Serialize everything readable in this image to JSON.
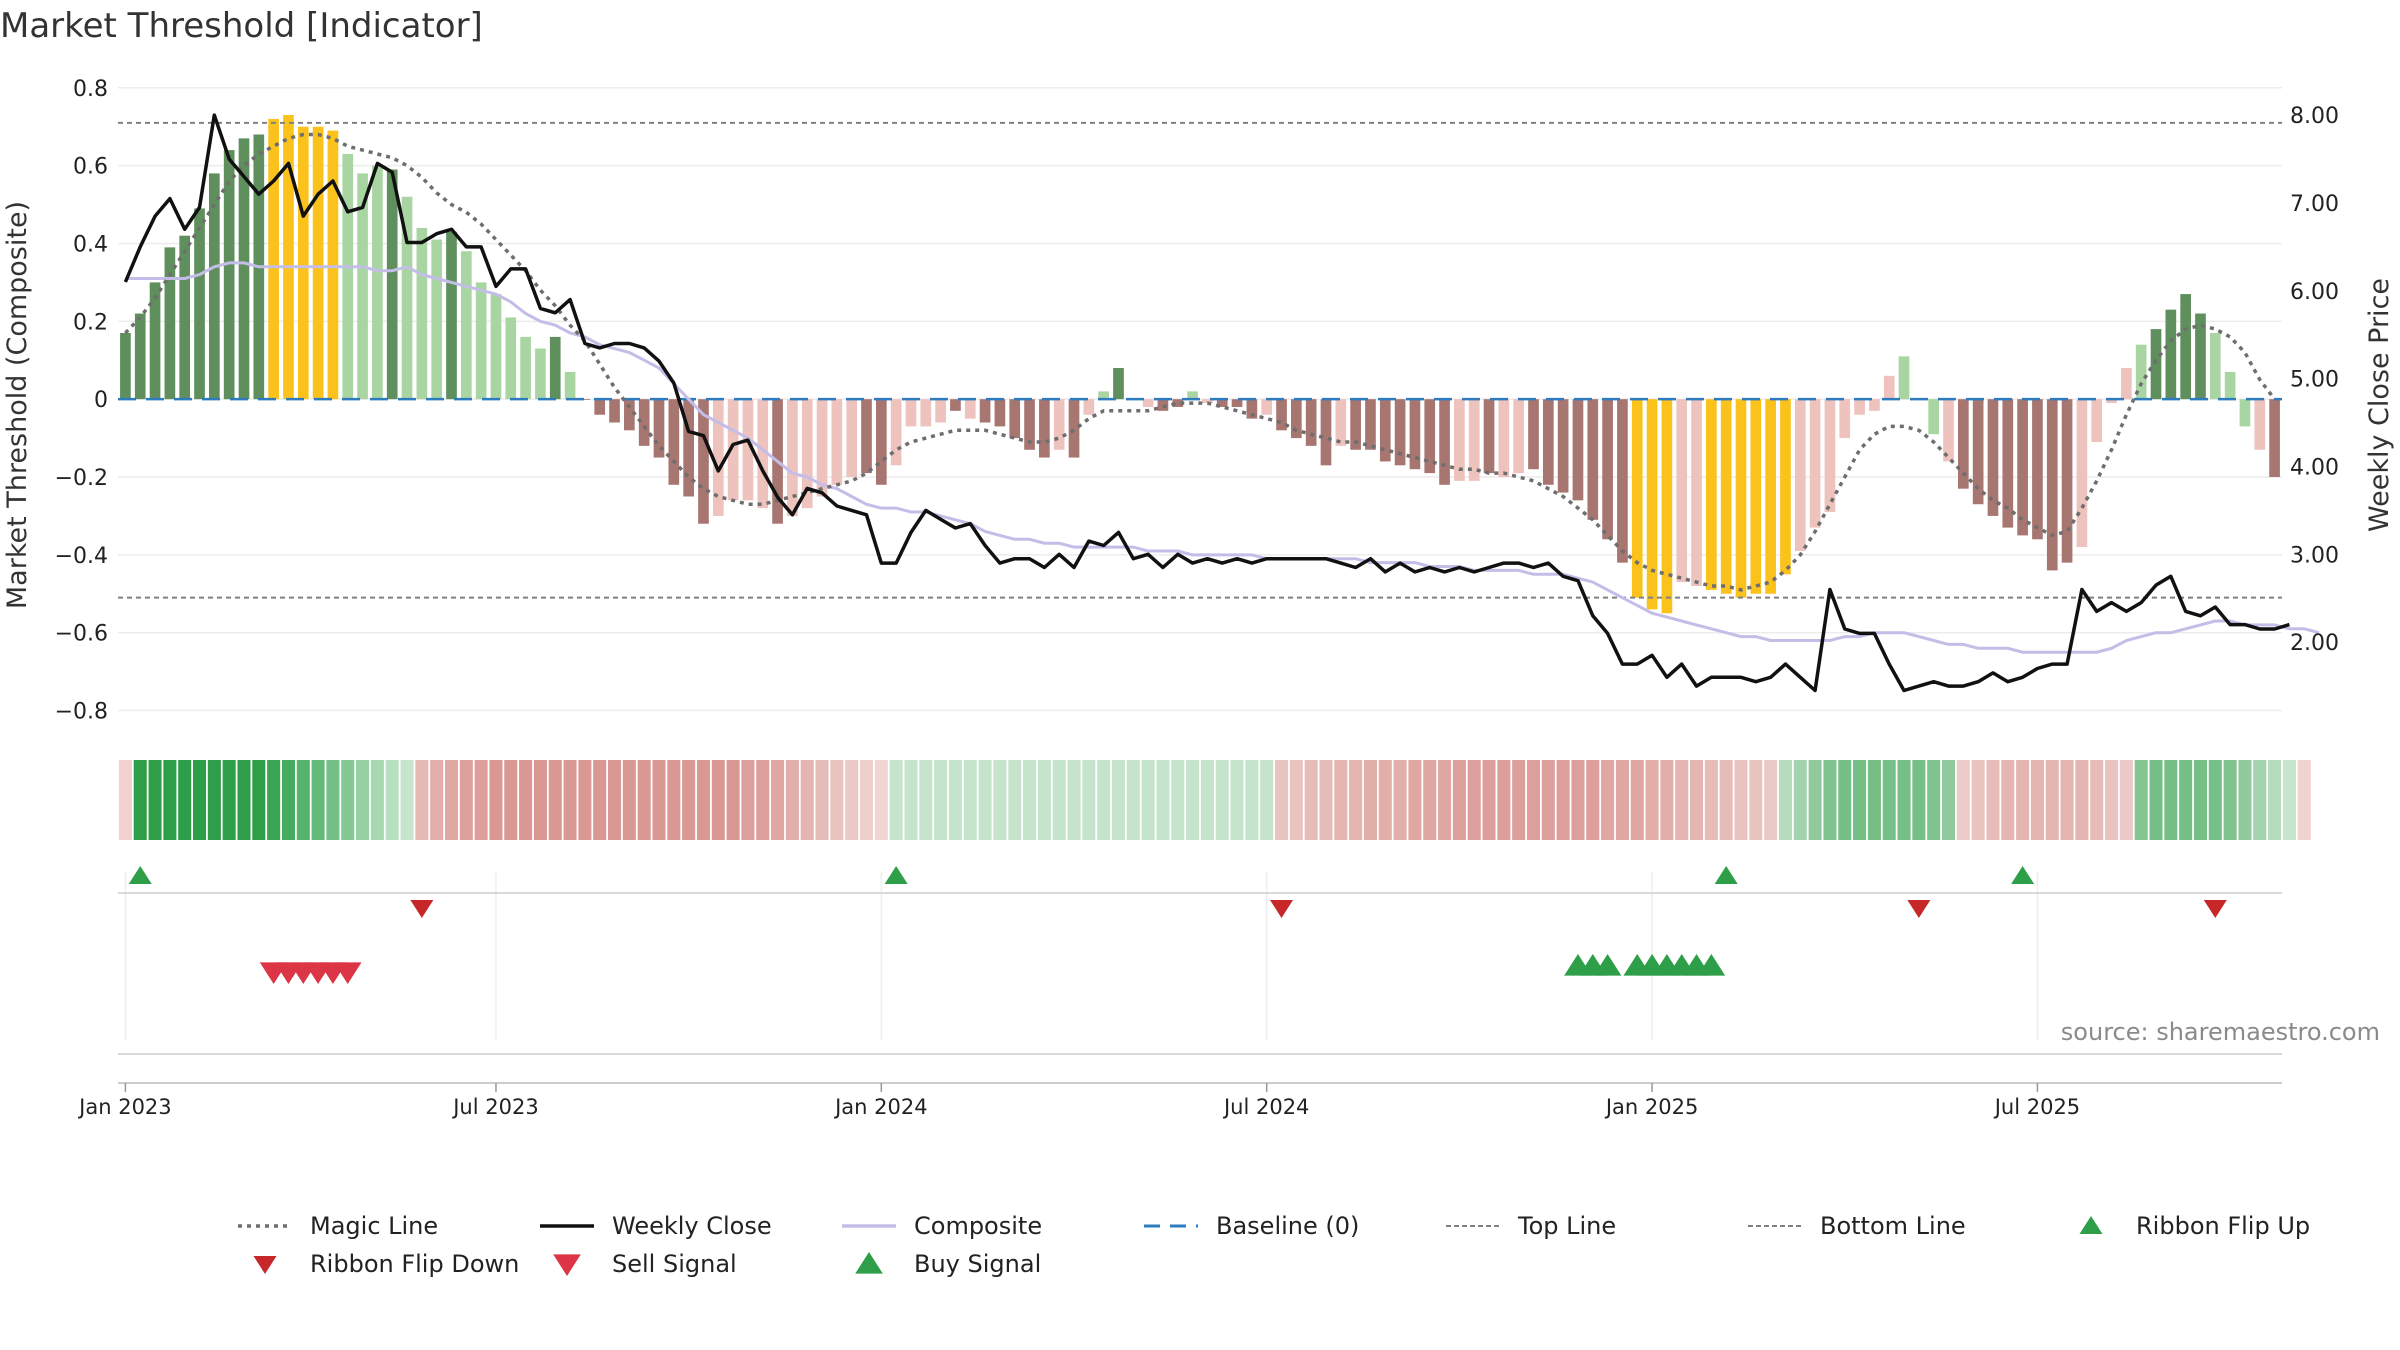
{
  "chart_data": {
    "type": "bar",
    "title": "Market Threshold [Indicator]",
    "ylabel": "Market Threshold (Composite)",
    "ylabel_right": "Weekly Close Price",
    "source": "source: sharemaestro.com",
    "ylim": [
      -0.85,
      0.82
    ],
    "ylim_right": [
      1.0,
      8.4
    ],
    "y_ticks": [
      {
        "v": 0.8,
        "label": "0.8"
      },
      {
        "v": 0.6,
        "label": "0.6"
      },
      {
        "v": 0.4,
        "label": "0.4"
      },
      {
        "v": 0.2,
        "label": "0.2"
      },
      {
        "v": 0,
        "label": "0"
      },
      {
        "v": -0.2,
        "label": "−0.2"
      },
      {
        "v": -0.4,
        "label": "−0.4"
      },
      {
        "v": -0.6,
        "label": "−0.6"
      },
      {
        "v": -0.8,
        "label": "−0.8"
      }
    ],
    "y_ticks_right": [
      {
        "v": 8,
        "label": "8.00"
      },
      {
        "v": 7,
        "label": "7.00"
      },
      {
        "v": 6,
        "label": "6.00"
      },
      {
        "v": 5,
        "label": "5.00"
      },
      {
        "v": 4,
        "label": "4.00"
      },
      {
        "v": 3,
        "label": "3.00"
      },
      {
        "v": 2,
        "label": "2.00"
      }
    ],
    "x_ticks": [
      {
        "week": 1,
        "label": "Jan 2023"
      },
      {
        "week": 26,
        "label": "Jul 2023"
      },
      {
        "week": 52,
        "label": "Jan 2024"
      },
      {
        "week": 78,
        "label": "Jul 2024"
      },
      {
        "week": 104,
        "label": "Jan 2025"
      },
      {
        "week": 130,
        "label": "Jul 2025"
      }
    ],
    "top_line": 0.71,
    "bottom_line": -0.51,
    "baseline": 0,
    "colors": {
      "strong_up": "#5f8f5c",
      "weak_up": "#a9d5a2",
      "extreme": "#fbc21b",
      "strong_down": "#a87671",
      "weak_down": "#eec2bd",
      "magic_line": "#6e6e6e",
      "weekly_close": "#111111",
      "composite": "#c4bde8",
      "baseline": "#2f7bbf",
      "ref_line": "#808080",
      "flip_up": "#2e9e48",
      "flip_down": "#c8272a",
      "sell": "#dc3545",
      "buy": "#2e9e48"
    },
    "composite_bars": [
      0.17,
      0.22,
      0.3,
      0.39,
      0.42,
      0.49,
      0.58,
      0.64,
      0.67,
      0.68,
      0.72,
      0.73,
      0.7,
      0.7,
      0.69,
      0.63,
      0.58,
      0.6,
      0.59,
      0.52,
      0.44,
      0.41,
      0.43,
      0.38,
      0.3,
      0.27,
      0.21,
      0.16,
      0.13,
      0.16,
      0.07,
      0.0,
      -0.04,
      -0.06,
      -0.08,
      -0.12,
      -0.15,
      -0.22,
      -0.25,
      -0.32,
      -0.3,
      -0.26,
      -0.26,
      -0.28,
      -0.32,
      -0.3,
      -0.28,
      -0.25,
      -0.22,
      -0.2,
      -0.19,
      -0.22,
      -0.17,
      -0.07,
      -0.07,
      -0.06,
      -0.03,
      -0.05,
      -0.06,
      -0.07,
      -0.1,
      -0.13,
      -0.15,
      -0.13,
      -0.15,
      -0.04,
      0.02,
      0.08,
      0.0,
      -0.02,
      -0.03,
      -0.02,
      0.02,
      -0.01,
      -0.02,
      -0.02,
      -0.05,
      -0.04,
      -0.08,
      -0.1,
      -0.12,
      -0.17,
      -0.12,
      -0.13,
      -0.13,
      -0.16,
      -0.17,
      -0.18,
      -0.19,
      -0.22,
      -0.21,
      -0.21,
      -0.19,
      -0.2,
      -0.19,
      -0.18,
      -0.22,
      -0.24,
      -0.26,
      -0.31,
      -0.36,
      -0.42,
      -0.51,
      -0.54,
      -0.55,
      -0.47,
      -0.48,
      -0.49,
      -0.5,
      -0.51,
      -0.5,
      -0.5,
      -0.45,
      -0.39,
      -0.33,
      -0.29,
      -0.1,
      -0.04,
      -0.03,
      0.06,
      0.11,
      0.0,
      -0.09,
      -0.16,
      -0.23,
      -0.27,
      -0.3,
      -0.33,
      -0.35,
      -0.36,
      -0.44,
      -0.42,
      -0.38,
      -0.11,
      -0.01,
      0.08,
      0.14,
      0.18,
      0.23,
      0.27,
      0.22,
      0.17,
      0.07,
      -0.07,
      -0.13,
      -0.2
    ],
    "bar_categories": [
      "strong_up",
      "strong_up",
      "strong_up",
      "strong_up",
      "strong_up",
      "strong_up",
      "strong_up",
      "strong_up",
      "strong_up",
      "strong_up",
      "extreme",
      "extreme",
      "extreme",
      "extreme",
      "extreme",
      "weak_up",
      "weak_up",
      "weak_up",
      "strong_up",
      "weak_up",
      "weak_up",
      "weak_up",
      "strong_up",
      "weak_up",
      "weak_up",
      "weak_up",
      "weak_up",
      "weak_up",
      "weak_up",
      "strong_up",
      "weak_up",
      "strong_down",
      "strong_down",
      "strong_down",
      "strong_down",
      "strong_down",
      "strong_down",
      "strong_down",
      "strong_down",
      "strong_down",
      "weak_down",
      "weak_down",
      "weak_down",
      "weak_down",
      "strong_down",
      "weak_down",
      "weak_down",
      "weak_down",
      "weak_down",
      "weak_down",
      "strong_down",
      "strong_down",
      "weak_down",
      "weak_down",
      "weak_down",
      "weak_down",
      "strong_down",
      "weak_down",
      "strong_down",
      "strong_down",
      "strong_down",
      "strong_down",
      "strong_down",
      "weak_down",
      "strong_down",
      "weak_down",
      "weak_up",
      "strong_up",
      "weak_down",
      "weak_down",
      "strong_down",
      "strong_down",
      "weak_up",
      "weak_down",
      "strong_down",
      "strong_down",
      "strong_down",
      "weak_down",
      "strong_down",
      "strong_down",
      "strong_down",
      "strong_down",
      "weak_down",
      "strong_down",
      "strong_down",
      "strong_down",
      "strong_down",
      "strong_down",
      "strong_down",
      "strong_down",
      "weak_down",
      "weak_down",
      "strong_down",
      "weak_down",
      "weak_down",
      "strong_down",
      "strong_down",
      "strong_down",
      "strong_down",
      "strong_down",
      "strong_down",
      "strong_down",
      "extreme",
      "extreme",
      "extreme",
      "weak_down",
      "weak_down",
      "extreme",
      "extreme",
      "extreme",
      "extreme",
      "extreme",
      "extreme",
      "weak_down",
      "weak_down",
      "weak_down",
      "weak_down",
      "weak_down",
      "weak_down",
      "weak_down",
      "weak_up",
      "strong_up",
      "weak_up",
      "weak_down",
      "strong_down",
      "strong_down",
      "strong_down",
      "strong_down",
      "strong_down",
      "strong_down",
      "strong_down",
      "strong_down",
      "weak_down",
      "weak_down",
      "weak_down",
      "weak_down",
      "weak_up",
      "strong_up",
      "strong_up",
      "strong_up",
      "strong_up",
      "weak_up",
      "weak_up",
      "weak_up",
      "weak_down",
      "strong_down",
      "strong_down"
    ],
    "magic_line": [
      0.17,
      0.21,
      0.26,
      0.32,
      0.38,
      0.44,
      0.5,
      0.56,
      0.6,
      0.63,
      0.65,
      0.67,
      0.68,
      0.68,
      0.67,
      0.65,
      0.64,
      0.63,
      0.62,
      0.6,
      0.57,
      0.53,
      0.5,
      0.48,
      0.45,
      0.41,
      0.37,
      0.33,
      0.28,
      0.24,
      0.19,
      0.15,
      0.09,
      0.03,
      -0.02,
      -0.07,
      -0.12,
      -0.16,
      -0.2,
      -0.23,
      -0.25,
      -0.26,
      -0.27,
      -0.27,
      -0.26,
      -0.25,
      -0.24,
      -0.23,
      -0.22,
      -0.21,
      -0.19,
      -0.16,
      -0.13,
      -0.11,
      -0.1,
      -0.09,
      -0.08,
      -0.08,
      -0.08,
      -0.09,
      -0.1,
      -0.11,
      -0.11,
      -0.1,
      -0.08,
      -0.05,
      -0.03,
      -0.03,
      -0.03,
      -0.03,
      -0.02,
      -0.01,
      -0.01,
      -0.01,
      -0.02,
      -0.03,
      -0.04,
      -0.05,
      -0.06,
      -0.08,
      -0.09,
      -0.1,
      -0.11,
      -0.11,
      -0.12,
      -0.13,
      -0.14,
      -0.15,
      -0.16,
      -0.17,
      -0.18,
      -0.18,
      -0.19,
      -0.19,
      -0.2,
      -0.21,
      -0.23,
      -0.25,
      -0.28,
      -0.31,
      -0.35,
      -0.39,
      -0.42,
      -0.44,
      -0.45,
      -0.46,
      -0.47,
      -0.48,
      -0.48,
      -0.49,
      -0.48,
      -0.47,
      -0.44,
      -0.4,
      -0.34,
      -0.27,
      -0.2,
      -0.13,
      -0.09,
      -0.07,
      -0.07,
      -0.08,
      -0.11,
      -0.15,
      -0.19,
      -0.23,
      -0.26,
      -0.28,
      -0.31,
      -0.33,
      -0.35,
      -0.34,
      -0.28,
      -0.21,
      -0.13,
      -0.04,
      0.04,
      0.1,
      0.15,
      0.18,
      0.19,
      0.18,
      0.16,
      0.12,
      0.05,
      0.0
    ],
    "composite_line": [
      0.31,
      0.31,
      0.31,
      0.31,
      0.31,
      0.32,
      0.34,
      0.35,
      0.35,
      0.34,
      0.34,
      0.34,
      0.34,
      0.34,
      0.34,
      0.34,
      0.34,
      0.33,
      0.33,
      0.34,
      0.32,
      0.31,
      0.3,
      0.29,
      0.28,
      0.27,
      0.25,
      0.22,
      0.2,
      0.19,
      0.17,
      0.16,
      0.14,
      0.13,
      0.12,
      0.1,
      0.08,
      0.04,
      0.0,
      -0.04,
      -0.06,
      -0.08,
      -0.1,
      -0.13,
      -0.16,
      -0.19,
      -0.2,
      -0.22,
      -0.23,
      -0.25,
      -0.27,
      -0.28,
      -0.28,
      -0.29,
      -0.29,
      -0.3,
      -0.31,
      -0.32,
      -0.34,
      -0.35,
      -0.36,
      -0.36,
      -0.37,
      -0.37,
      -0.38,
      -0.38,
      -0.38,
      -0.38,
      -0.38,
      -0.39,
      -0.39,
      -0.39,
      -0.4,
      -0.4,
      -0.4,
      -0.4,
      -0.4,
      -0.41,
      -0.41,
      -0.41,
      -0.41,
      -0.41,
      -0.41,
      -0.41,
      -0.42,
      -0.42,
      -0.42,
      -0.42,
      -0.43,
      -0.43,
      -0.43,
      -0.44,
      -0.44,
      -0.44,
      -0.44,
      -0.45,
      -0.45,
      -0.45,
      -0.46,
      -0.47,
      -0.49,
      -0.51,
      -0.53,
      -0.55,
      -0.56,
      -0.57,
      -0.58,
      -0.59,
      -0.6,
      -0.61,
      -0.61,
      -0.62,
      -0.62,
      -0.62,
      -0.62,
      -0.62,
      -0.61,
      -0.61,
      -0.6,
      -0.6,
      -0.6,
      -0.61,
      -0.62,
      -0.63,
      -0.63,
      -0.64,
      -0.64,
      -0.64,
      -0.65,
      -0.65,
      -0.65,
      -0.65,
      -0.65,
      -0.65,
      -0.64,
      -0.62,
      -0.61,
      -0.6,
      -0.6,
      -0.59,
      -0.58,
      -0.57,
      -0.57,
      -0.58,
      -0.58,
      -0.58,
      -0.59,
      -0.59,
      -0.6
    ],
    "weekly_close": [
      6.1,
      6.5,
      6.85,
      7.05,
      6.7,
      6.95,
      8.0,
      7.5,
      7.3,
      7.1,
      7.25,
      7.45,
      6.85,
      7.1,
      7.25,
      6.9,
      6.95,
      7.45,
      7.35,
      6.55,
      6.55,
      6.65,
      6.7,
      6.5,
      6.5,
      6.05,
      6.25,
      6.25,
      5.8,
      5.75,
      5.9,
      5.4,
      5.35,
      5.4,
      5.4,
      5.35,
      5.2,
      4.95,
      4.4,
      4.35,
      3.95,
      4.25,
      4.3,
      3.95,
      3.65,
      3.45,
      3.75,
      3.7,
      3.55,
      3.5,
      3.45,
      2.9,
      2.9,
      3.25,
      3.5,
      3.4,
      3.3,
      3.35,
      3.1,
      2.9,
      2.95,
      2.95,
      2.85,
      3.0,
      2.85,
      3.15,
      3.1,
      3.25,
      2.95,
      3.0,
      2.85,
      3.0,
      2.9,
      2.95,
      2.9,
      2.95,
      2.9,
      2.95,
      2.95,
      2.95,
      2.95,
      2.95,
      2.9,
      2.85,
      2.95,
      2.8,
      2.9,
      2.8,
      2.85,
      2.8,
      2.85,
      2.8,
      2.85,
      2.9,
      2.9,
      2.85,
      2.9,
      2.75,
      2.7,
      2.3,
      2.1,
      1.75,
      1.75,
      1.85,
      1.6,
      1.75,
      1.5,
      1.6,
      1.6,
      1.6,
      1.55,
      1.6,
      1.75,
      1.6,
      1.45,
      2.6,
      2.15,
      2.1,
      2.1,
      1.75,
      1.45,
      1.5,
      1.55,
      1.5,
      1.5,
      1.55,
      1.65,
      1.55,
      1.6,
      1.7,
      1.75,
      1.75,
      2.6,
      2.35,
      2.45,
      2.35,
      2.45,
      2.65,
      2.75,
      2.35,
      2.3,
      2.4,
      2.2,
      2.2,
      2.15,
      2.15,
      2.2
    ],
    "ribbon": {
      "colors": [
        "#f2d2d0",
        "#2e9e48",
        "#2e9e48",
        "#2e9e48",
        "#2e9e48",
        "#2e9e48",
        "#2e9e48",
        "#2e9e48",
        "#2e9e48",
        "#2e9e48",
        "#3aa552",
        "#46ab5e",
        "#56b36c",
        "#66ba79",
        "#74c186",
        "#84c893",
        "#96d0a3",
        "#a8d8b2",
        "#b9dfc1",
        "#c6e5cc",
        "#e6b9b6",
        "#e3aeab",
        "#e0a8a4",
        "#dd9f9b",
        "#dd9f9b",
        "#da9893",
        "#da9893",
        "#da9893",
        "#da9893",
        "#da9893",
        "#da9893",
        "#da9893",
        "#da9893",
        "#da9893",
        "#da9893",
        "#da9893",
        "#da9893",
        "#da9893",
        "#da9893",
        "#da9893",
        "#da9893",
        "#da9893",
        "#dd9f9b",
        "#dd9f9b",
        "#dfa6a2",
        "#e2aeaa",
        "#e4b5b1",
        "#e6bcb8",
        "#e9c3bf",
        "#ebc9c6",
        "#eecfcc",
        "#f0d5d2",
        "#c5e4cb",
        "#c5e4cb",
        "#c5e4cb",
        "#c5e4cb",
        "#c5e4cb",
        "#c5e4cb",
        "#c5e4cb",
        "#c5e4cb",
        "#c5e4cb",
        "#c5e4cb",
        "#c5e4cb",
        "#c5e4cb",
        "#c5e4cb",
        "#c5e4cb",
        "#c5e4cb",
        "#c5e4cb",
        "#c5e4cb",
        "#c5e4cb",
        "#c5e4cb",
        "#c5e4cb",
        "#c5e4cb",
        "#c5e4cb",
        "#c5e4cb",
        "#c5e4cb",
        "#c5e4cb",
        "#c5e4cb",
        "#e9c3bf",
        "#e9c3bf",
        "#e6bcb8",
        "#e6bcb8",
        "#e4b5b1",
        "#e4b5b1",
        "#e2aeaa",
        "#e2aeaa",
        "#e2aeaa",
        "#dfa6a2",
        "#dfa6a2",
        "#dfa6a2",
        "#dd9f9b",
        "#dd9f9b",
        "#dd9f9b",
        "#dd9f9b",
        "#dd9f9b",
        "#dd9f9b",
        "#dd9f9b",
        "#dd9f9b",
        "#dd9f9b",
        "#dd9f9b",
        "#dfa6a2",
        "#dfa6a2",
        "#dfa6a2",
        "#e2aeaa",
        "#e2aeaa",
        "#e4b5b1",
        "#e4b5b1",
        "#e6bcb8",
        "#e6bcb8",
        "#e9c3bf",
        "#e9c3bf",
        "#ebc9c6",
        "#b6dcbd",
        "#a2d3ac",
        "#90ca9c",
        "#80c38f",
        "#76bf86",
        "#76bf86",
        "#76bf86",
        "#76bf86",
        "#76bf86",
        "#76bf86",
        "#80c38f",
        "#90ca9c",
        "#eccbc8",
        "#e9c3bf",
        "#e6bcb8",
        "#e4b5b1",
        "#e4b5b1",
        "#e4b5b1",
        "#e4b5b1",
        "#e4b5b1",
        "#e4b5b1",
        "#e6bcb8",
        "#e9c3bf",
        "#ebc9c6",
        "#84c590",
        "#76bf86",
        "#76bf86",
        "#76bf86",
        "#76bf86",
        "#76bf86",
        "#80c38f",
        "#90ca9c",
        "#a2d3ac",
        "#b6dcbd",
        "#c6e5cc",
        "#f0d2d0"
      ]
    },
    "ribbon_flip_up": [
      1,
      52,
      108,
      128
    ],
    "ribbon_flip_down": [
      20,
      78,
      121,
      141
    ],
    "sell_signals": [
      10,
      11,
      12,
      13,
      14,
      15
    ],
    "buy_signals": [
      98,
      99,
      100,
      102,
      103,
      104,
      105,
      106,
      107
    ],
    "legend": [
      {
        "label": "Magic Line",
        "kind": "dotted",
        "color_key": "magic_line"
      },
      {
        "label": "Weekly Close",
        "kind": "solid",
        "color_key": "weekly_close"
      },
      {
        "label": "Composite",
        "kind": "solid",
        "color_key": "composite"
      },
      {
        "label": "Baseline (0)",
        "kind": "dashed",
        "color_key": "baseline"
      },
      {
        "label": "Top Line",
        "kind": "thin-dash",
        "color_key": "ref_line"
      },
      {
        "label": "Bottom Line",
        "kind": "thin-dash",
        "color_key": "ref_line"
      },
      {
        "label": "Ribbon Flip Up",
        "kind": "tri-up",
        "color_key": "flip_up"
      },
      {
        "label": "Ribbon Flip Down",
        "kind": "tri-down",
        "color_key": "flip_down"
      },
      {
        "label": "Sell Signal",
        "kind": "tri-down-big",
        "color_key": "sell"
      },
      {
        "label": "Buy Signal",
        "kind": "tri-up-big",
        "color_key": "buy"
      }
    ]
  }
}
